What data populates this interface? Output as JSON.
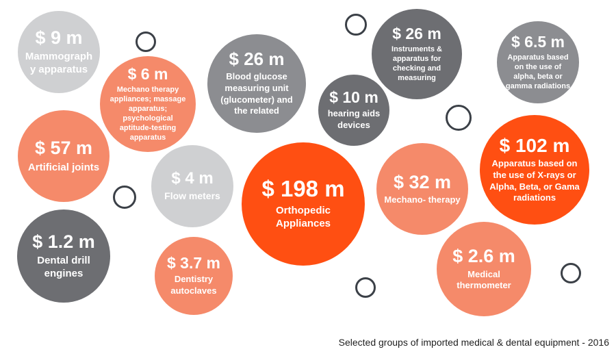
{
  "caption": "Selected groups of imported medical & dental equipment - 2016",
  "colors": {
    "light_gray": "#cfd0d2",
    "gray": "#8c8d91",
    "dark_gray": "#6d6e72",
    "salmon": "#f58a6a",
    "orange": "#ff4f12",
    "ring": "#3b4047"
  },
  "chart_data": {
    "type": "bubble",
    "unit": "$ m",
    "items": [
      {
        "value": 9,
        "value_label": "$ 9 m",
        "label": "Mammograph y apparatus",
        "color": "#cfd0d2"
      },
      {
        "value": 6,
        "value_label": "$ 6 m",
        "label": "Mechano therapy appliances; massage apparatus; psychological aptitude-testing apparatus",
        "color": "#f58a6a"
      },
      {
        "value": 26,
        "value_label": "$ 26 m",
        "label": "Blood glucose measuring unit (glucometer) and the related",
        "color": "#8c8d91"
      },
      {
        "value": 26,
        "value_label": "$ 26 m",
        "label": "Instruments & apparatus for checking and measuring",
        "color": "#6d6e72"
      },
      {
        "value": 10,
        "value_label": "$ 10 m",
        "label": "hearing aids devices",
        "color": "#6d6e72"
      },
      {
        "value": 6.5,
        "value_label": "$ 6.5 m",
        "label": "Apparatus based on the use of alpha, beta or gamma radiations",
        "color": "#8c8d91"
      },
      {
        "value": 57,
        "value_label": "$ 57 m",
        "label": "Artificial joints",
        "color": "#f58a6a"
      },
      {
        "value": 4,
        "value_label": "$ 4 m",
        "label": "Flow meters",
        "color": "#cfd0d2"
      },
      {
        "value": 198,
        "value_label": "$ 198 m",
        "label": "Orthopedic Appliances",
        "color": "#ff4f12"
      },
      {
        "value": 32,
        "value_label": "$ 32 m",
        "label": "Mechano- therapy",
        "color": "#f58a6a"
      },
      {
        "value": 102,
        "value_label": "$ 102 m",
        "label": "Apparatus based on the use of X-rays or Alpha, Beta, or Gama radiations",
        "color": "#ff4f12"
      },
      {
        "value": 1.2,
        "value_label": "$ 1.2 m",
        "label": "Dental drill engines",
        "color": "#6d6e72"
      },
      {
        "value": 3.7,
        "value_label": "$ 3.7 m",
        "label": "Dentistry autoclaves",
        "color": "#f58a6a"
      },
      {
        "value": 2.6,
        "value_label": "$ 2.6 m",
        "label": "Medical thermometer",
        "color": "#f58a6a"
      }
    ]
  }
}
